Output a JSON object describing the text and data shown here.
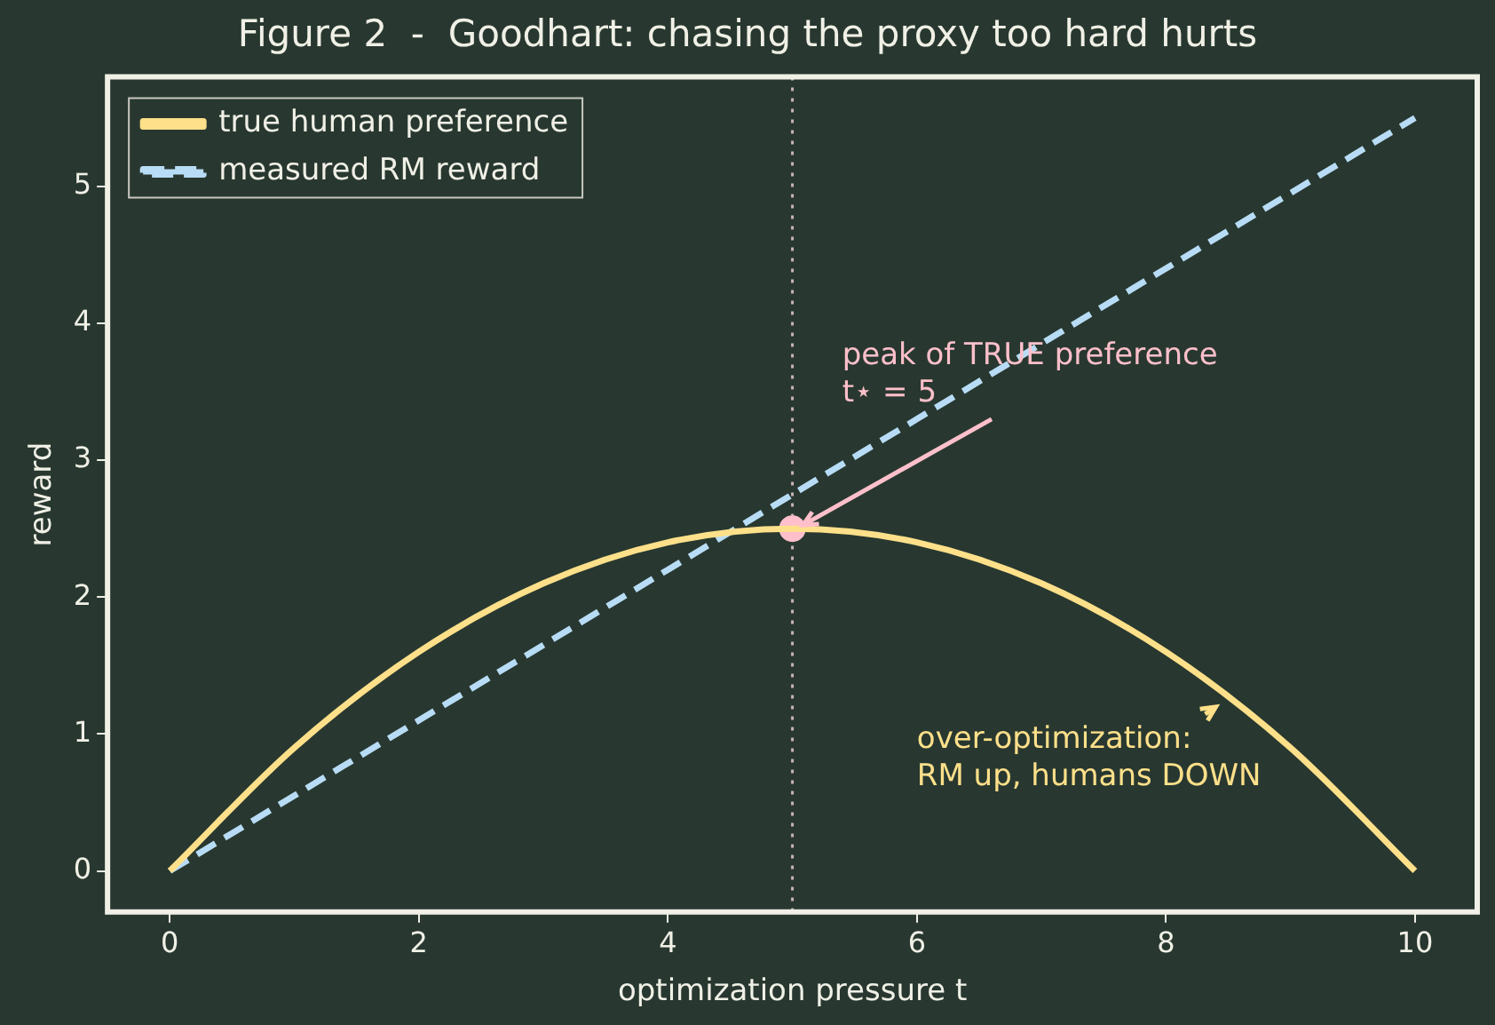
{
  "chart_data": {
    "type": "line",
    "title": "Figure 2  -  Goodhart: chasing the proxy too hard hurts",
    "xlabel": "optimization pressure t",
    "ylabel": "reward",
    "x": [
      0,
      1,
      2,
      3,
      4,
      5,
      6,
      7,
      8,
      9,
      10
    ],
    "series": [
      {
        "name": "true human preference",
        "color": "#ffe08a",
        "values": [
          0,
          0.9,
          1.6,
          2.1,
          2.4,
          2.5,
          2.4,
          2.1,
          1.6,
          0.9,
          0
        ],
        "line_style": "solid"
      },
      {
        "name": "measured RM reward",
        "color": "#b8dcf5",
        "values": [
          0,
          0.55,
          1.1,
          1.65,
          2.2,
          2.75,
          3.3,
          3.85,
          4.4,
          4.95,
          5.5
        ],
        "line_style": "dashed"
      },
      {
        "type": "scatter",
        "color": "#ffc0cb",
        "x": [
          5
        ],
        "values": [
          2.5
        ],
        "marker": "circle"
      }
    ],
    "annotations": [
      {
        "text": "peak of TRUE preference\nt⋆ = 5",
        "x": 5,
        "y": 2.5
      },
      {
        "text": "over-optimization:\nRM up, humans DOWN",
        "x": 8.4,
        "y": 1.25
      }
    ],
    "ref_lines": [
      {
        "axis": "x",
        "value": 5,
        "color": "#c8b4b4",
        "line_style": "dotted"
      }
    ],
    "xlim": [
      -0.5,
      10.5
    ],
    "ylim": [
      -0.3,
      5.8
    ],
    "xticks": [
      0,
      2,
      4,
      6,
      8,
      10
    ],
    "yticks": [
      0,
      1,
      2,
      3,
      4,
      5
    ],
    "grid": false,
    "legend": "top left",
    "marker": "none"
  }
}
